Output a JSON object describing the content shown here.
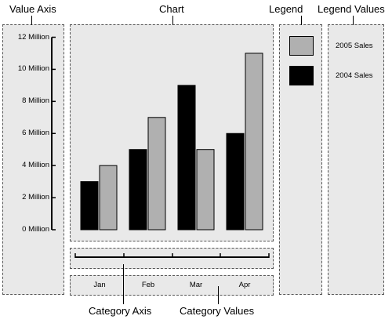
{
  "callouts": {
    "value_axis": "Value Axis",
    "chart": "Chart",
    "legend": "Legend",
    "legend_values": "Legend Values",
    "category_axis": "Category Axis",
    "category_values": "Category Values"
  },
  "chart_data": {
    "type": "bar",
    "categories": [
      "Jan",
      "Feb",
      "Mar",
      "Apr"
    ],
    "series": [
      {
        "name": "2004 Sales",
        "color": "#000000",
        "values": [
          3000000,
          5000000,
          9000000,
          6000000
        ]
      },
      {
        "name": "2005 Sales",
        "color": "#b0b0b0",
        "values": [
          4000000,
          7000000,
          5000000,
          11000000
        ]
      }
    ],
    "y_ticks": [
      "0 Million",
      "2 Million",
      "4 Million",
      "6 Million",
      "8 Million",
      "10 Million",
      "12 Million"
    ],
    "ylim": [
      0,
      12000000
    ],
    "legend": {
      "placement": "right",
      "order": [
        "2005 Sales",
        "2004 Sales"
      ]
    },
    "grid": false
  }
}
